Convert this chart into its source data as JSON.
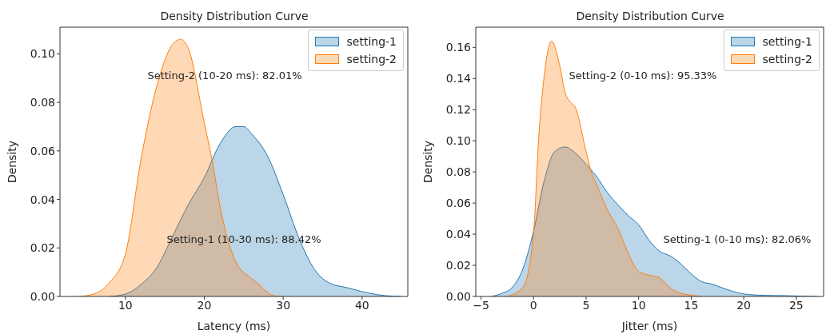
{
  "chart_data": [
    {
      "type": "area",
      "title": "Density Distribution Curve",
      "xlabel": "Latency (ms)",
      "ylabel": "Density",
      "xlim": [
        1.7,
        45.8
      ],
      "xticks": [
        10,
        20,
        30,
        40
      ],
      "ylim": [
        0,
        0.111
      ],
      "yticks": [
        {
          "value": 0,
          "label": "0.00"
        },
        {
          "value": 0.02,
          "label": "0.02"
        },
        {
          "value": 0.04,
          "label": "0.04"
        },
        {
          "value": 0.06,
          "label": "0.06"
        },
        {
          "value": 0.08,
          "label": "0.08"
        },
        {
          "value": 0.1,
          "label": "0.10"
        }
      ],
      "legend": "top right",
      "series": [
        {
          "name": "setting-1",
          "color": "#1f77b4",
          "x": [
            8,
            10,
            12,
            14,
            16,
            18,
            20,
            22,
            24,
            25,
            26,
            28,
            30,
            32,
            34,
            36,
            38,
            40,
            42,
            44,
            45
          ],
          "values": [
            0,
            0.001,
            0.005,
            0.012,
            0.025,
            0.038,
            0.049,
            0.063,
            0.07,
            0.07,
            0.067,
            0.058,
            0.042,
            0.024,
            0.011,
            0.0053,
            0.0037,
            0.002,
            0.0007,
            0.0001,
            0
          ]
        },
        {
          "name": "setting-2",
          "color": "#ff7f0e",
          "x": [
            4,
            6,
            8,
            10,
            12,
            14,
            16,
            17,
            18,
            20,
            21,
            22,
            24,
            26,
            27,
            28,
            29,
            30
          ],
          "values": [
            0,
            0.001,
            0.0058,
            0.0175,
            0.057,
            0.087,
            0.104,
            0.106,
            0.102,
            0.0715,
            0.056,
            0.037,
            0.0143,
            0.0074,
            0.0048,
            0.0016,
            0.0002,
            0
          ]
        }
      ],
      "annotations": [
        "Setting-2 (10-20 ms): 82.01%",
        "Setting-1 (10-30 ms): 88.42%"
      ]
    },
    {
      "type": "area",
      "title": "Density Distribution Curve",
      "xlabel": "Jitter (ms)",
      "ylabel": "Density",
      "xlim": [
        -5.5,
        27.6
      ],
      "xticks": [
        {
          "value": -5,
          "label": "−5"
        },
        0,
        5,
        10,
        15,
        20,
        25
      ],
      "ylim": [
        0,
        0.173
      ],
      "yticks": [
        {
          "value": 0,
          "label": "0.00"
        },
        {
          "value": 0.02,
          "label": "0.02"
        },
        {
          "value": 0.04,
          "label": "0.04"
        },
        {
          "value": 0.06,
          "label": "0.06"
        },
        {
          "value": 0.08,
          "label": "0.08"
        },
        {
          "value": 0.1,
          "label": "0.10"
        },
        {
          "value": 0.12,
          "label": "0.12"
        },
        {
          "value": 0.14,
          "label": "0.14"
        },
        {
          "value": 0.16,
          "label": "0.16"
        }
      ],
      "legend": "top right",
      "series": [
        {
          "name": "setting-1",
          "color": "#1f77b4",
          "x": [
            -4,
            -3,
            -2,
            -1,
            0,
            1,
            2,
            3,
            4,
            5,
            6,
            7,
            8,
            9,
            10,
            11,
            12,
            13,
            14,
            15,
            16,
            17,
            18,
            20,
            22,
            24,
            26,
            27
          ],
          "values": [
            0,
            0.002,
            0.006,
            0.018,
            0.042,
            0.074,
            0.093,
            0.096,
            0.092,
            0.085,
            0.077,
            0.067,
            0.059,
            0.052,
            0.046,
            0.036,
            0.029,
            0.026,
            0.021,
            0.0145,
            0.0095,
            0.0079,
            0.0054,
            0.0016,
            0.0007,
            0.0005,
            0.0001,
            0
          ]
        },
        {
          "name": "setting-2",
          "color": "#ff7f0e",
          "x": [
            -2.5,
            -1,
            0,
            0.5,
            1,
            1.7,
            2.5,
            3,
            3.5,
            4,
            5,
            5.5,
            6,
            7,
            8,
            9,
            10,
            11,
            12,
            13,
            14,
            15,
            16
          ],
          "values": [
            0,
            0.006,
            0.041,
            0.103,
            0.141,
            0.164,
            0.148,
            0.131,
            0.125,
            0.121,
            0.093,
            0.08,
            0.072,
            0.056,
            0.044,
            0.028,
            0.016,
            0.0137,
            0.012,
            0.0054,
            0.0021,
            0.0008,
            0
          ]
        }
      ],
      "annotations": [
        "Setting-2 (0-10 ms): 95.33%",
        "Setting-1 (0-10 ms): 82.06%"
      ]
    }
  ]
}
